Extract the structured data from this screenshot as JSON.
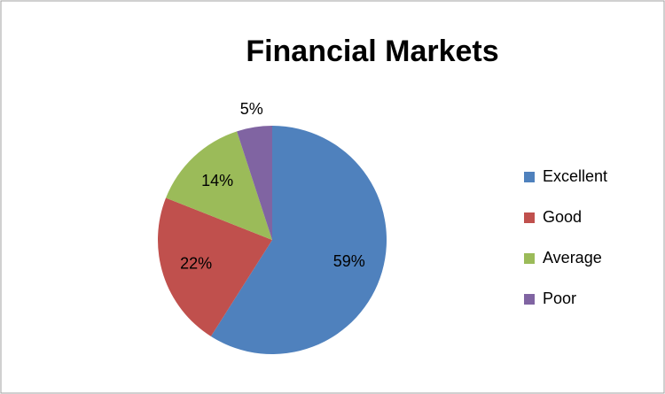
{
  "chart_data": {
    "type": "pie",
    "title": "Financial Markets",
    "categories": [
      "Excellent",
      "Good",
      "Average",
      "Poor"
    ],
    "values": [
      59,
      22,
      14,
      5
    ],
    "value_labels": [
      "59%",
      "22%",
      "14%",
      "5%"
    ],
    "colors": [
      "#4f81bd",
      "#c0504d",
      "#9bbb59",
      "#8064a2"
    ],
    "legend": "right"
  }
}
